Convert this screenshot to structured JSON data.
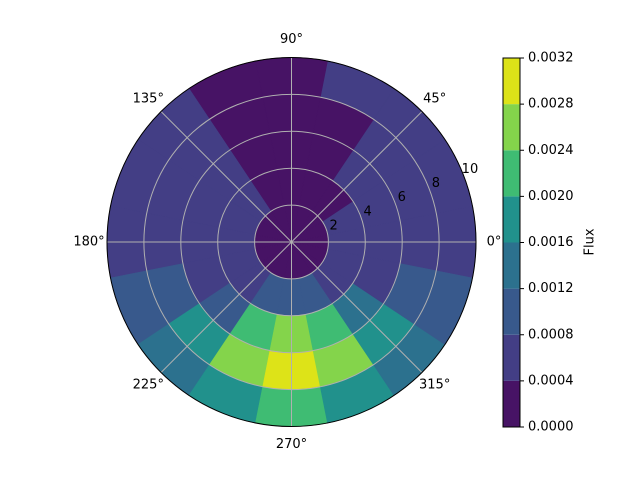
{
  "chart_data": {
    "type": "polar-contour",
    "colorbar_label": "Flux",
    "theta": [
      0,
      22.5,
      45,
      67.5,
      90,
      112.5,
      135,
      157.5,
      180,
      202.5,
      225,
      247.5,
      270,
      292.5,
      315,
      337.5
    ],
    "r": [
      1,
      3,
      5,
      7,
      9
    ],
    "z": [
      [
        0.0002,
        0.0006,
        0.0006,
        0.0006,
        0.0006
      ],
      [
        0.0002,
        0.0006,
        0.0006,
        0.0006,
        0.0006
      ],
      [
        0.0002,
        0.0002,
        0.0006,
        0.0006,
        0.0006
      ],
      [
        0.0002,
        0.0002,
        0.0002,
        0.0002,
        0.0006
      ],
      [
        0.0002,
        0.0002,
        0.0002,
        0.0002,
        0.0002
      ],
      [
        0.0002,
        0.0002,
        0.0002,
        0.0002,
        0.0002
      ],
      [
        0.0002,
        0.0006,
        0.0006,
        0.0006,
        0.0006
      ],
      [
        0.0002,
        0.0006,
        0.0006,
        0.0006,
        0.0006
      ],
      [
        0.0002,
        0.0006,
        0.0006,
        0.0006,
        0.0006
      ],
      [
        0.0002,
        0.0006,
        0.0006,
        0.001,
        0.001
      ],
      [
        0.0002,
        0.0006,
        0.001,
        0.0018,
        0.0014
      ],
      [
        0.0002,
        0.001,
        0.0022,
        0.0026,
        0.0018
      ],
      [
        0.0002,
        0.001,
        0.0026,
        0.003,
        0.0022
      ],
      [
        0.0002,
        0.001,
        0.0022,
        0.0026,
        0.0018
      ],
      [
        0.0002,
        0.0006,
        0.0014,
        0.0018,
        0.0014
      ],
      [
        0.0002,
        0.0006,
        0.0006,
        0.001,
        0.001
      ]
    ],
    "rlim": [
      0,
      10
    ],
    "rticks": [
      2,
      4,
      6,
      8,
      10
    ],
    "thetaticks": [
      {
        "value": 0,
        "label": "0°"
      },
      {
        "value": 45,
        "label": "45°"
      },
      {
        "value": 90,
        "label": "90°"
      },
      {
        "value": 135,
        "label": "135°"
      },
      {
        "value": 180,
        "label": "180°"
      },
      {
        "value": 225,
        "label": "225°"
      },
      {
        "value": 270,
        "label": "270°"
      },
      {
        "value": 315,
        "label": "315°"
      }
    ],
    "clim": [
      0,
      0.0032
    ],
    "cticks": [
      {
        "value": 0,
        "label": "0.0000"
      },
      {
        "value": 0.0004,
        "label": "0.0004"
      },
      {
        "value": 0.0008,
        "label": "0.0008"
      },
      {
        "value": 0.0012,
        "label": "0.0012"
      },
      {
        "value": 0.0016,
        "label": "0.0016"
      },
      {
        "value": 0.002,
        "label": "0.0020"
      },
      {
        "value": 0.0024,
        "label": "0.0024"
      },
      {
        "value": 0.0028,
        "label": "0.0028"
      },
      {
        "value": 0.0032,
        "label": "0.0032"
      }
    ],
    "colors": [
      "#471365",
      "#433e85",
      "#38598c",
      "#2c718e",
      "#21918c",
      "#3fbc73",
      "#84d44b",
      "#dde318"
    ],
    "grid": true
  }
}
